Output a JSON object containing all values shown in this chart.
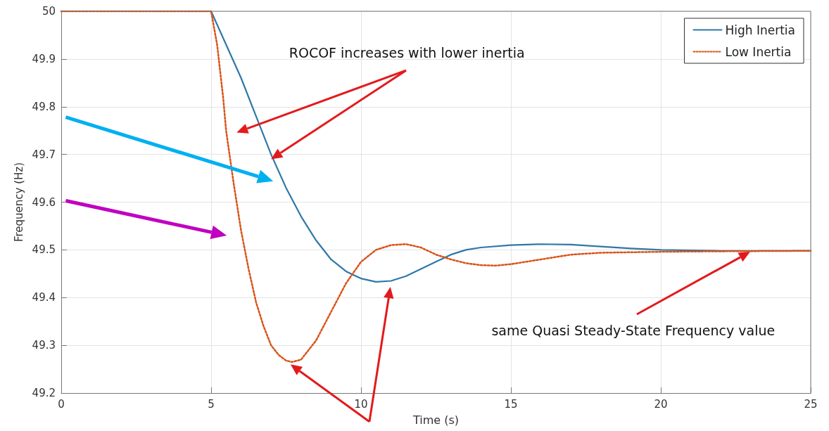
{
  "chart_data": {
    "type": "line",
    "xlabel": "Time (s)",
    "ylabel": "Frequency (Hz)",
    "xlim": [
      0,
      25
    ],
    "xticks": [
      0,
      5,
      10,
      15,
      20,
      25
    ],
    "ylim": [
      49.2,
      50
    ],
    "yticks": [
      49.2,
      49.3,
      49.4,
      49.5,
      49.6,
      49.7,
      49.8,
      49.9,
      50
    ],
    "grid": true,
    "legend": "top right",
    "marker": "none",
    "annotations": [
      "ROCOF increases with lower inertia",
      "same Quasi Steady-State Frequency value"
    ],
    "series": [
      {
        "name": "High Inertia",
        "color": "#2e78a8",
        "line_style": "solid",
        "x": [
          0,
          5,
          5.5,
          6,
          6.5,
          7,
          7.5,
          8,
          8.5,
          9,
          9.5,
          10,
          10.5,
          11,
          11.5,
          12,
          12.5,
          13,
          13.5,
          14,
          15,
          16,
          17,
          18,
          19,
          20,
          22,
          25
        ],
        "values": [
          50,
          50,
          49.93,
          49.86,
          49.78,
          49.7,
          49.63,
          49.57,
          49.52,
          49.48,
          49.455,
          49.44,
          49.433,
          49.435,
          49.445,
          49.46,
          49.475,
          49.49,
          49.5,
          49.505,
          49.51,
          49.512,
          49.511,
          49.507,
          49.503,
          49.5,
          49.498,
          49.498
        ]
      },
      {
        "name": "Low Inertia",
        "color": "#d95319",
        "line_style": "dotted",
        "x": [
          0,
          5,
          5.2,
          5.4,
          5.5,
          5.75,
          6,
          6.25,
          6.5,
          6.75,
          7,
          7.25,
          7.5,
          7.7,
          8,
          8.5,
          9,
          9.5,
          10,
          10.5,
          11,
          11.5,
          12,
          12.5,
          13,
          13.5,
          14,
          14.5,
          15,
          16,
          17,
          18,
          20,
          22,
          25
        ],
        "values": [
          50,
          50,
          49.93,
          49.82,
          49.75,
          49.64,
          49.54,
          49.46,
          49.39,
          49.34,
          49.3,
          49.28,
          49.268,
          49.265,
          49.27,
          49.31,
          49.37,
          49.43,
          49.475,
          49.5,
          49.51,
          49.512,
          49.505,
          49.49,
          49.48,
          49.472,
          49.468,
          49.467,
          49.47,
          49.48,
          49.49,
          49.494,
          49.496,
          49.497,
          49.498
        ]
      }
    ]
  }
}
